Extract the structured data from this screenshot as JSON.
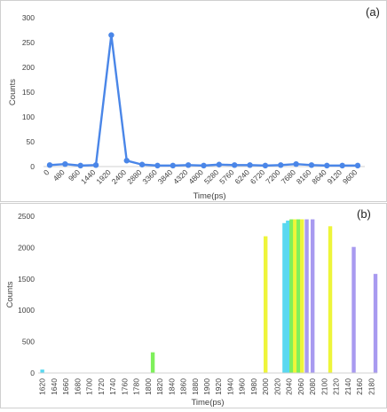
{
  "chart_data": [
    {
      "type": "line",
      "panel_label": "(a)",
      "xlabel": "Time(ps)",
      "ylabel": "Counts",
      "ylim": [
        0,
        300
      ],
      "yticks": [
        0,
        50,
        100,
        150,
        200,
        250,
        300
      ],
      "grid": false,
      "x": [
        0,
        480,
        960,
        1440,
        1920,
        2400,
        2880,
        3360,
        3840,
        4320,
        4800,
        5280,
        5760,
        6240,
        6720,
        7200,
        7680,
        8160,
        8640,
        9120,
        9600
      ],
      "series": [
        {
          "color": "#4a86e8",
          "values": [
            3,
            5,
            2,
            3,
            265,
            12,
            4,
            2,
            2,
            3,
            2,
            4,
            3,
            3,
            2,
            3,
            5,
            3,
            2,
            2,
            2
          ]
        }
      ]
    },
    {
      "type": "bar",
      "panel_label": "(b)",
      "xlabel": "Time(ps)",
      "ylabel": "Counts",
      "ylim": [
        0,
        2500
      ],
      "yticks": [
        0,
        500,
        1000,
        1500,
        2000,
        2500
      ],
      "grid": false,
      "xlim": [
        1613,
        2190
      ],
      "xticks": [
        1620,
        1640,
        1660,
        1680,
        1700,
        1720,
        1740,
        1760,
        1780,
        1800,
        1820,
        1840,
        1860,
        1880,
        1900,
        1920,
        1940,
        1960,
        1980,
        2000,
        2020,
        2040,
        2060,
        2080,
        2100,
        2120,
        2140,
        2160,
        2180
      ],
      "bars": [
        {
          "x": 1620,
          "value": 55,
          "color": "#5ad8f0"
        },
        {
          "x": 1808,
          "value": 330,
          "color": "#7ef05a"
        },
        {
          "x": 2000,
          "value": 2180,
          "color": "#eef53a"
        },
        {
          "x": 2032,
          "value": 2390,
          "color": "#5ad8f0"
        },
        {
          "x": 2038,
          "value": 2430,
          "color": "#5ad8f0"
        },
        {
          "x": 2044,
          "value": 2450,
          "color": "#7ef05a"
        },
        {
          "x": 2050,
          "value": 2450,
          "color": "#eef53a"
        },
        {
          "x": 2056,
          "value": 2450,
          "color": "#7ef05a"
        },
        {
          "x": 2062,
          "value": 2450,
          "color": "#eef53a"
        },
        {
          "x": 2070,
          "value": 2450,
          "color": "#a89af0"
        },
        {
          "x": 2080,
          "value": 2450,
          "color": "#a89af0"
        },
        {
          "x": 2110,
          "value": 2340,
          "color": "#eef53a"
        },
        {
          "x": 2150,
          "value": 2010,
          "color": "#a89af0"
        },
        {
          "x": 2187,
          "value": 1580,
          "color": "#a89af0"
        }
      ]
    }
  ]
}
